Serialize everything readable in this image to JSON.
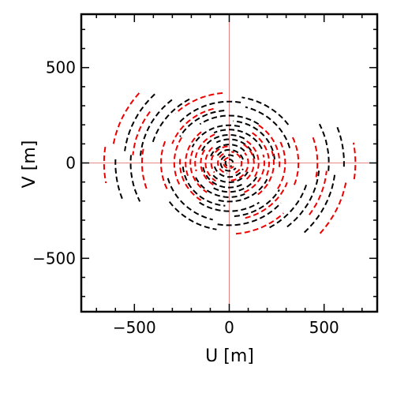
{
  "chart_data": {
    "type": "scatter",
    "title": "",
    "xlabel": "U [m]",
    "ylabel": "V [m]",
    "xlim": [
      -780,
      780
    ],
    "ylim": [
      -780,
      780
    ],
    "xticks": [
      -500,
      0,
      500
    ],
    "yticks": [
      -500,
      0,
      500
    ],
    "xtick_labels": [
      "−500",
      "0",
      "500"
    ],
    "ytick_labels": [
      "−500",
      "0",
      "500"
    ],
    "grid": false,
    "crosshair_at_origin": true,
    "legend": "none",
    "series": [
      {
        "color": "#000000",
        "style": "dashed",
        "arcs": [
          {
            "r": 20,
            "start": 10,
            "span": 300
          },
          {
            "r": 45,
            "start": 60,
            "span": 260
          },
          {
            "r": 75,
            "start": 15,
            "span": 140
          },
          {
            "r": 80,
            "start": 195,
            "span": 140
          },
          {
            "r": 105,
            "start": 40,
            "span": 120
          },
          {
            "r": 110,
            "start": 220,
            "span": 120
          },
          {
            "r": 135,
            "start": 10,
            "span": 110
          },
          {
            "r": 140,
            "start": 190,
            "span": 110
          },
          {
            "r": 160,
            "start": 60,
            "span": 95
          },
          {
            "r": 165,
            "start": 240,
            "span": 95
          },
          {
            "r": 190,
            "start": 25,
            "span": 90
          },
          {
            "r": 195,
            "start": 205,
            "span": 90
          },
          {
            "r": 215,
            "start": 75,
            "span": 80
          },
          {
            "r": 220,
            "start": 255,
            "span": 80
          },
          {
            "r": 240,
            "start": 5,
            "span": 80
          },
          {
            "r": 245,
            "start": 185,
            "span": 80
          },
          {
            "r": 270,
            "start": 55,
            "span": 70
          },
          {
            "r": 275,
            "start": 235,
            "span": 70
          },
          {
            "r": 300,
            "start": 95,
            "span": 55
          },
          {
            "r": 305,
            "start": 275,
            "span": 55
          },
          {
            "r": 330,
            "start": 15,
            "span": 60
          },
          {
            "r": 335,
            "start": 195,
            "span": 60
          },
          {
            "r": 350,
            "start": 80,
            "span": 60
          },
          {
            "r": 355,
            "start": 260,
            "span": 60
          },
          {
            "r": 380,
            "start": 35,
            "span": 45
          },
          {
            "r": 385,
            "start": 215,
            "span": 45
          },
          {
            "r": 420,
            "start": 120,
            "span": 45
          },
          {
            "r": 425,
            "start": 300,
            "span": 45
          },
          {
            "r": 470,
            "start": 130,
            "span": 45
          },
          {
            "r": 475,
            "start": 310,
            "span": 45
          },
          {
            "r": 520,
            "start": 175,
            "span": 30
          },
          {
            "r": 525,
            "start": 355,
            "span": 30
          },
          {
            "r": 555,
            "start": 135,
            "span": 38
          },
          {
            "r": 560,
            "start": 315,
            "span": 38
          },
          {
            "r": 600,
            "start": 178,
            "span": 22
          },
          {
            "r": 605,
            "start": 358,
            "span": 22
          }
        ]
      },
      {
        "color": "#ee0000",
        "style": "dashed",
        "arcs": [
          {
            "r": 30,
            "start": 100,
            "span": 220
          },
          {
            "r": 60,
            "start": 120,
            "span": 140
          },
          {
            "r": 65,
            "start": 300,
            "span": 140
          },
          {
            "r": 95,
            "start": 95,
            "span": 120
          },
          {
            "r": 100,
            "start": 275,
            "span": 120
          },
          {
            "r": 125,
            "start": 135,
            "span": 100
          },
          {
            "r": 130,
            "start": 315,
            "span": 100
          },
          {
            "r": 150,
            "start": 150,
            "span": 90
          },
          {
            "r": 155,
            "start": 330,
            "span": 90
          },
          {
            "r": 180,
            "start": 115,
            "span": 80
          },
          {
            "r": 185,
            "start": 295,
            "span": 80
          },
          {
            "r": 205,
            "start": 160,
            "span": 75
          },
          {
            "r": 210,
            "start": 340,
            "span": 75
          },
          {
            "r": 230,
            "start": 130,
            "span": 70
          },
          {
            "r": 235,
            "start": 310,
            "span": 70
          },
          {
            "r": 260,
            "start": 175,
            "span": 60
          },
          {
            "r": 265,
            "start": 355,
            "span": 60
          },
          {
            "r": 290,
            "start": 150,
            "span": 55
          },
          {
            "r": 295,
            "start": 330,
            "span": 55
          },
          {
            "r": 320,
            "start": 105,
            "span": 55
          },
          {
            "r": 325,
            "start": 285,
            "span": 55
          },
          {
            "r": 360,
            "start": 160,
            "span": 45
          },
          {
            "r": 365,
            "start": 340,
            "span": 45
          },
          {
            "r": 400,
            "start": 95,
            "span": 40
          },
          {
            "r": 405,
            "start": 275,
            "span": 40
          },
          {
            "r": 460,
            "start": 170,
            "span": 30
          },
          {
            "r": 465,
            "start": 350,
            "span": 30
          },
          {
            "r": 510,
            "start": 145,
            "span": 30
          },
          {
            "r": 515,
            "start": 325,
            "span": 30
          },
          {
            "r": 620,
            "start": 140,
            "span": 30
          },
          {
            "r": 625,
            "start": 320,
            "span": 30
          },
          {
            "r": 660,
            "start": 172,
            "span": 18
          },
          {
            "r": 665,
            "start": 352,
            "span": 18
          }
        ]
      }
    ]
  }
}
